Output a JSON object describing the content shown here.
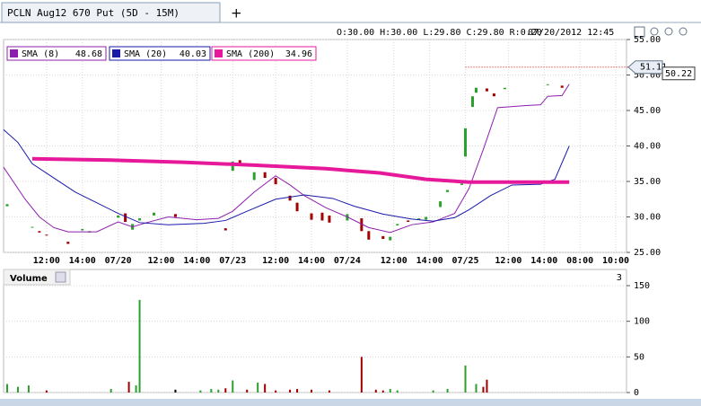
{
  "header": {
    "tab": "PCLN Aug12 670 Put (5D - 15M)",
    "add_tab": "+",
    "ohlc": "O:30.00 H:30.00 L:29.80 C:29.80 R:0.20",
    "datetime": "07/20/2012 12:45"
  },
  "chart_data": [
    {
      "type": "candlestick",
      "up_color": "#2ca02c",
      "down_color": "#a00000",
      "x": [
        1,
        8,
        10,
        12,
        18,
        22,
        24,
        32,
        34,
        36,
        38,
        42,
        48,
        62,
        64,
        66,
        70,
        73,
        76,
        80,
        82,
        86,
        89,
        91,
        96,
        100,
        102,
        106,
        108,
        110,
        113,
        116,
        118,
        122,
        124,
        128,
        129,
        131,
        132,
        135,
        137,
        140,
        152,
        156
      ],
      "open": [
        31.5,
        28.5,
        28,
        27.5,
        26.5,
        28.1,
        27.8,
        29.9,
        30.5,
        28.2,
        29.5,
        30.2,
        30.4,
        28.4,
        36.5,
        38,
        35.2,
        36.3,
        35.5,
        33,
        32,
        30.5,
        30.6,
        30.2,
        29.5,
        29.8,
        28,
        27.3,
        26.7,
        28.8,
        29.5,
        29.6,
        29.6,
        31.4,
        33.5,
        34.5,
        38.5,
        45.5,
        47.5,
        48.1,
        47.4,
        48,
        48.6,
        48.5
      ],
      "close": [
        31.8,
        28.6,
        27.8,
        27.4,
        26.2,
        28.3,
        28,
        30.2,
        29.3,
        29,
        29.8,
        30.6,
        30,
        28.1,
        37.8,
        37.3,
        36.3,
        35.5,
        34.6,
        32.3,
        30.8,
        29.6,
        29.5,
        29.2,
        30.4,
        28,
        26.8,
        26.9,
        27.2,
        29,
        29.3,
        29.8,
        30,
        32.2,
        33.8,
        34.7,
        42.5,
        47,
        48.2,
        47.7,
        47,
        48.2,
        48.7,
        48.2
      ],
      "series": [
        {
          "name": "SMA (8)",
          "last": 48.68,
          "color": "#8e1fae",
          "x": [
            0,
            6,
            10,
            14,
            18,
            26,
            32,
            36,
            40,
            46,
            54,
            60,
            64,
            70,
            76,
            80,
            84,
            90,
            96,
            102,
            108,
            114,
            120,
            126,
            130,
            134,
            138,
            146,
            150,
            152,
            156,
            158
          ],
          "values": [
            37,
            32.5,
            30,
            28.5,
            27.9,
            27.9,
            29.3,
            28.6,
            29.2,
            30,
            29.6,
            29.8,
            30.8,
            33.5,
            35.8,
            34.5,
            33,
            31.3,
            30,
            28.5,
            27.8,
            28.9,
            29.3,
            30.5,
            34,
            39.5,
            45.4,
            45.7,
            45.8,
            47,
            47.1,
            48.7
          ]
        },
        {
          "name": "SMA (20)",
          "last": 40.03,
          "color": "#1a1aa8",
          "x": [
            0,
            4,
            8,
            14,
            20,
            26,
            32,
            38,
            46,
            56,
            62,
            68,
            76,
            84,
            92,
            98,
            106,
            114,
            120,
            126,
            130,
            136,
            142,
            150,
            154,
            158
          ],
          "values": [
            42.3,
            40.5,
            37.5,
            35.5,
            33.5,
            32,
            30.5,
            29.2,
            28.9,
            29.1,
            29.5,
            30.8,
            32.5,
            33.1,
            32.6,
            31.5,
            30.4,
            29.7,
            29.4,
            29.9,
            31,
            33,
            34.5,
            34.6,
            35.3,
            40
          ]
        },
        {
          "name": "SMA (200)",
          "last": 34.96,
          "color": "#e6199a",
          "x": [
            8,
            30,
            50,
            70,
            90,
            105,
            118,
            130,
            158
          ],
          "values": [
            38.2,
            38,
            37.7,
            37.3,
            36.8,
            36.2,
            35.3,
            34.9,
            34.9
          ]
        }
      ],
      "last_price": 51.11,
      "marker_price": 50.22,
      "xlim": [
        0,
        174
      ],
      "xticks": [
        {
          "value": 12,
          "label": "12:00"
        },
        {
          "value": 22,
          "label": "14:00"
        },
        {
          "value": 32,
          "label": "07/20"
        },
        {
          "value": 44,
          "label": "12:00"
        },
        {
          "value": 54,
          "label": "14:00"
        },
        {
          "value": 64,
          "label": "07/23"
        },
        {
          "value": 76,
          "label": "12:00"
        },
        {
          "value": 86,
          "label": "14:00"
        },
        {
          "value": 96,
          "label": "07/24"
        },
        {
          "value": 109,
          "label": "12:00"
        },
        {
          "value": 119,
          "label": "14:00"
        },
        {
          "value": 129,
          "label": "07/25"
        },
        {
          "value": 141,
          "label": "12:00"
        },
        {
          "value": 151,
          "label": "14:00"
        },
        {
          "value": 161,
          "label": "08:00"
        },
        {
          "value": 171,
          "label": "10:00"
        }
      ],
      "ylim": [
        25,
        55
      ],
      "yticks": [
        {
          "value": 25,
          "label": "25.00"
        },
        {
          "value": 30,
          "label": "30.00"
        },
        {
          "value": 35,
          "label": "35.00"
        },
        {
          "value": 40,
          "label": "40.00"
        },
        {
          "value": 45,
          "label": "45.00"
        },
        {
          "value": 50,
          "label": "50.00"
        },
        {
          "value": 55,
          "label": "55.00"
        }
      ],
      "grid": true
    },
    {
      "type": "bar",
      "title": "Volume",
      "count": 3,
      "x": [
        1,
        4,
        7,
        12,
        30,
        35,
        37,
        38,
        48,
        55,
        58,
        60,
        62,
        64,
        68,
        71,
        73,
        76,
        80,
        82,
        86,
        91,
        100,
        104,
        106,
        108,
        110,
        120,
        124,
        129,
        132,
        134,
        135
      ],
      "values": [
        12,
        8,
        10,
        3,
        5,
        15,
        10,
        130,
        4,
        3,
        5,
        4,
        6,
        17,
        4,
        14,
        12,
        3,
        4,
        5,
        4,
        3,
        50,
        4,
        3,
        5,
        3,
        3,
        5,
        38,
        12,
        8,
        18
      ],
      "colors": [
        "#2ca02c",
        "#2ca02c",
        "#2ca02c",
        "#a00000",
        "#2ca02c",
        "#a00000",
        "#2ca02c",
        "#2ca02c",
        "#000000",
        "#2ca02c",
        "#2ca02c",
        "#2ca02c",
        "#a00000",
        "#2ca02c",
        "#a00000",
        "#2ca02c",
        "#a00000",
        "#a00000",
        "#a00000",
        "#a00000",
        "#a00000",
        "#a00000",
        "#a00000",
        "#a00000",
        "#a00000",
        "#2ca02c",
        "#2ca02c",
        "#2ca02c",
        "#2ca02c",
        "#2ca02c",
        "#2ca02c",
        "#a00000",
        "#a00000"
      ],
      "xlim": [
        0,
        174
      ],
      "ylim": [
        0,
        150
      ],
      "yticks": [
        0,
        50,
        100,
        150
      ],
      "grid": true
    }
  ]
}
